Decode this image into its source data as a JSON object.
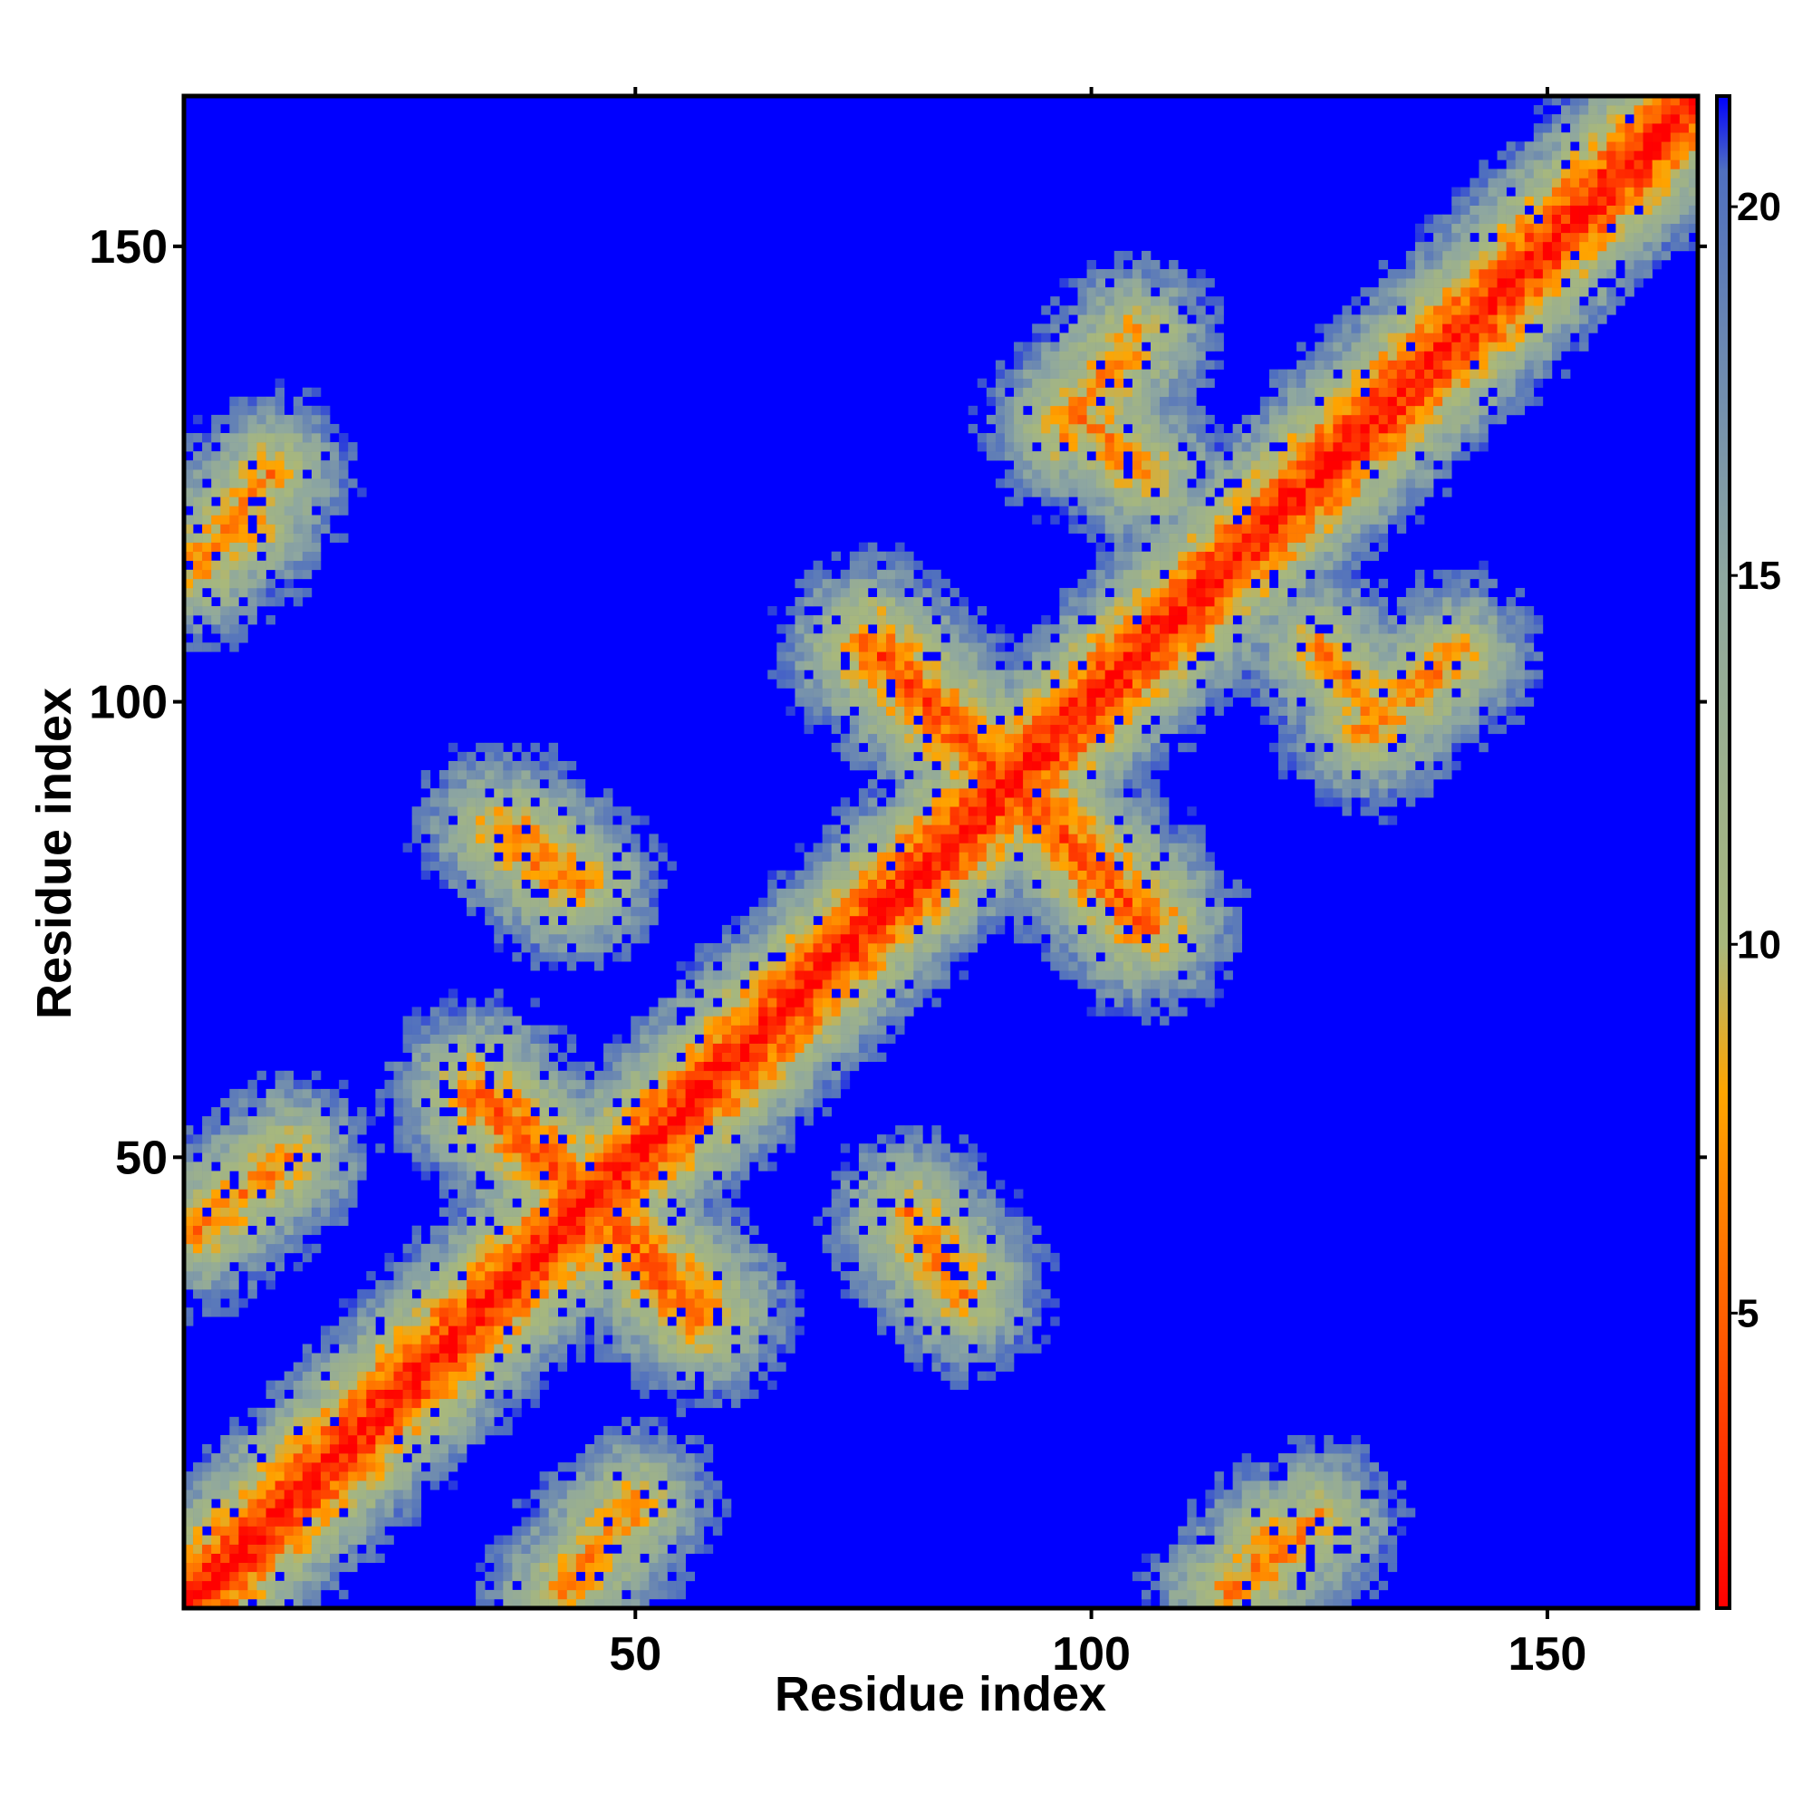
{
  "chart_data": {
    "type": "heatmap",
    "title": "",
    "xlabel": "Residue index",
    "ylabel": "Residue index",
    "xlim": [
      1,
      166
    ],
    "ylim": [
      1,
      166
    ],
    "x_ticks": [
      50,
      100,
      150
    ],
    "y_ticks": [
      50,
      100,
      150
    ],
    "n_residues": 166,
    "colorbar": {
      "range": [
        1,
        21.5
      ],
      "ticks": [
        5,
        10,
        15,
        20
      ],
      "stops": [
        {
          "value": 1,
          "color": "#ff0000"
        },
        {
          "value": 4.5,
          "color": "#ff5500"
        },
        {
          "value": 8,
          "color": "#ffa500"
        },
        {
          "value": 10,
          "color": "#a8b87c"
        },
        {
          "value": 15,
          "color": "#8ea7a0"
        },
        {
          "value": 20.5,
          "color": "#4f6fbf"
        },
        {
          "value": 21.5,
          "color": "#0000ff"
        }
      ]
    },
    "background_color": "#0000ff",
    "contact_regions": [
      {
        "x": [
          1,
          166
        ],
        "y": [
          1,
          166
        ],
        "kind": "main diagonal"
      },
      {
        "x": [
          76,
          106
        ],
        "y": [
          106,
          76
        ],
        "kind": "antiparallel band"
      },
      {
        "x": [
          33,
          57
        ],
        "y": [
          57,
          33
        ],
        "kind": "antiparallel band"
      },
      {
        "x": [
          35,
          42
        ],
        "y": [
          86,
          80
        ],
        "kind": "contact patch"
      },
      {
        "x": [
          80,
          86
        ],
        "y": [
          44,
          37
        ],
        "kind": "contact patch"
      },
      {
        "x": [
          98,
          106
        ],
        "y": [
          132,
          125
        ],
        "kind": "contact patch"
      },
      {
        "x": [
          130,
          140
        ],
        "y": [
          97,
          105
        ],
        "kind": "contact patch"
      },
      {
        "x": [
          2,
          12
        ],
        "y": [
          42,
          50
        ],
        "kind": "contact patch"
      },
      {
        "x": [
          115,
          125
        ],
        "y": [
          2,
          10
        ],
        "kind": "contact patch"
      },
      {
        "x": [
          1,
          8
        ],
        "y": [
          115,
          120
        ],
        "kind": "contact patch"
      }
    ]
  }
}
